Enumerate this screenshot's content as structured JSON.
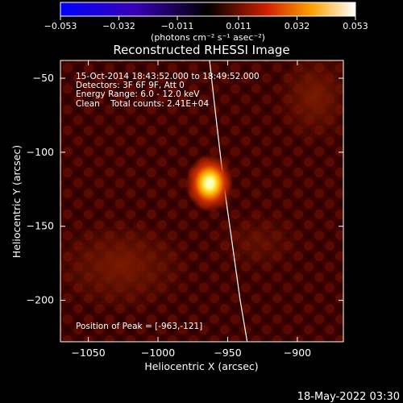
{
  "colorbar": {
    "tick_labels": [
      "−0.053",
      "−0.032",
      "−0.011",
      "0.011",
      "0.032",
      "0.053"
    ],
    "tick_values": [
      -0.053,
      -0.032,
      -0.011,
      0.011,
      0.032,
      0.053
    ],
    "range": [
      -0.053,
      0.053
    ],
    "units_label": "(photons cm⁻² s⁻¹ asec⁻²)",
    "colormap": "blue-black-red-yellow-white"
  },
  "chart_data": {
    "type": "heatmap",
    "title": "Reconstructed RHESSI Image",
    "xlabel": "Heliocentric X (arcsec)",
    "ylabel": "Heliocentric Y (arcsec)",
    "xlim": [
      -1070,
      -867
    ],
    "ylim": [
      -228,
      -38
    ],
    "x_ticks": [
      -1050,
      -1000,
      -950,
      -900
    ],
    "x_tick_labels": [
      "−1050",
      "−1000",
      "−950",
      "−900"
    ],
    "y_ticks": [
      -50,
      -100,
      -150,
      -200
    ],
    "y_tick_labels": [
      "−50",
      "−100",
      "−150",
      "−200"
    ],
    "info_lines": [
      "15-Oct-2014 18:43:52.000 to 18:49:52.000",
      "Detectors: 3F 6F 9F, Att 0",
      "Energy Range: 6.0 - 12.0 keV",
      "Clean    Total counts: 2.41E+04"
    ],
    "peak_label": "Position of Peak = [-963,-121]",
    "peak": {
      "x": -963,
      "y": -121
    },
    "limb_curve": [
      [
        -963,
        -38
      ],
      [
        -958,
        -80
      ],
      [
        -953,
        -120
      ],
      [
        -947,
        -160
      ],
      [
        -941,
        -200
      ],
      [
        -936,
        -228
      ]
    ]
  },
  "footer": {
    "timestamp": "18-May-2022 03:30"
  }
}
